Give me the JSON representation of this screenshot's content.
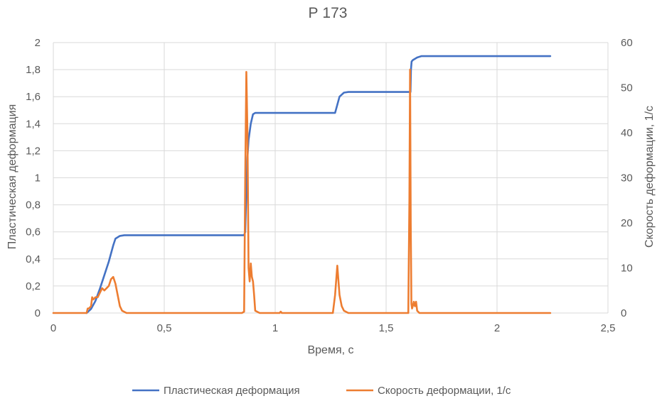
{
  "chart_data": {
    "type": "line",
    "title": "Р 173",
    "xlabel": "Время, с",
    "ylabel_left": "Пластическая деформация",
    "ylabel_right": "Скорость деформации, 1/с",
    "xlim": [
      0,
      2.5
    ],
    "ylim_left": [
      0,
      2
    ],
    "ylim_right": [
      0,
      60
    ],
    "x_ticks": [
      "0",
      "0,5",
      "1",
      "1,5",
      "2",
      "2,5"
    ],
    "y_left_ticks": [
      "0",
      "0,2",
      "0,4",
      "0,6",
      "0,8",
      "1",
      "1,2",
      "1,4",
      "1,6",
      "1,8",
      "2"
    ],
    "y_right_ticks": [
      "0",
      "10",
      "20",
      "30",
      "40",
      "50",
      "60"
    ],
    "grid": true,
    "legend_position": "bottom",
    "series": [
      {
        "name": "Пластическая деформация",
        "axis": "left",
        "color": "#4472C4",
        "x": [
          0.15,
          0.17,
          0.19,
          0.21,
          0.23,
          0.25,
          0.27,
          0.28,
          0.3,
          0.32,
          0.5,
          0.86,
          0.865,
          0.87,
          0.875,
          0.88,
          0.89,
          0.9,
          0.91,
          0.95,
          1.27,
          1.29,
          1.31,
          1.33,
          1.61,
          1.612,
          1.615,
          1.62,
          1.64,
          1.66,
          2.24
        ],
        "y": [
          0.0,
          0.03,
          0.09,
          0.18,
          0.28,
          0.38,
          0.5,
          0.55,
          0.57,
          0.575,
          0.575,
          0.575,
          0.6,
          0.9,
          1.15,
          1.28,
          1.4,
          1.47,
          1.48,
          1.48,
          1.48,
          1.6,
          1.63,
          1.635,
          1.635,
          1.8,
          1.86,
          1.87,
          1.89,
          1.9,
          1.9
        ]
      },
      {
        "name": "Скорость деформации, 1/с",
        "axis": "right",
        "color": "#ED7D31",
        "x": [
          0.0,
          0.15,
          0.155,
          0.16,
          0.17,
          0.175,
          0.18,
          0.19,
          0.2,
          0.21,
          0.22,
          0.23,
          0.24,
          0.25,
          0.26,
          0.27,
          0.28,
          0.29,
          0.3,
          0.31,
          0.33,
          0.85,
          0.86,
          0.865,
          0.87,
          0.875,
          0.88,
          0.885,
          0.89,
          0.895,
          0.9,
          0.905,
          0.91,
          0.93,
          1.02,
          1.025,
          1.03,
          1.26,
          1.27,
          1.28,
          1.29,
          1.3,
          1.31,
          1.33,
          1.6,
          1.605,
          1.608,
          1.611,
          1.614,
          1.617,
          1.62,
          1.625,
          1.63,
          1.635,
          1.64,
          1.65,
          2.24
        ],
        "y": [
          0.0,
          0.0,
          1.0,
          1.0,
          1.5,
          3.5,
          3.0,
          3.5,
          3.5,
          4.5,
          5.5,
          5.0,
          5.5,
          6.0,
          7.5,
          8.0,
          6.5,
          4.0,
          1.5,
          0.5,
          0.0,
          0.0,
          0.3,
          30,
          53.5,
          40,
          10,
          7,
          11,
          8,
          7,
          4,
          0.5,
          0.0,
          0.0,
          0.3,
          0.0,
          0.0,
          4.0,
          10.5,
          4.0,
          1.5,
          0.5,
          0.0,
          0.0,
          25,
          54,
          20,
          2.0,
          1.0,
          1.5,
          2.5,
          1.5,
          2.5,
          0.5,
          0.0,
          0.0
        ]
      }
    ]
  }
}
